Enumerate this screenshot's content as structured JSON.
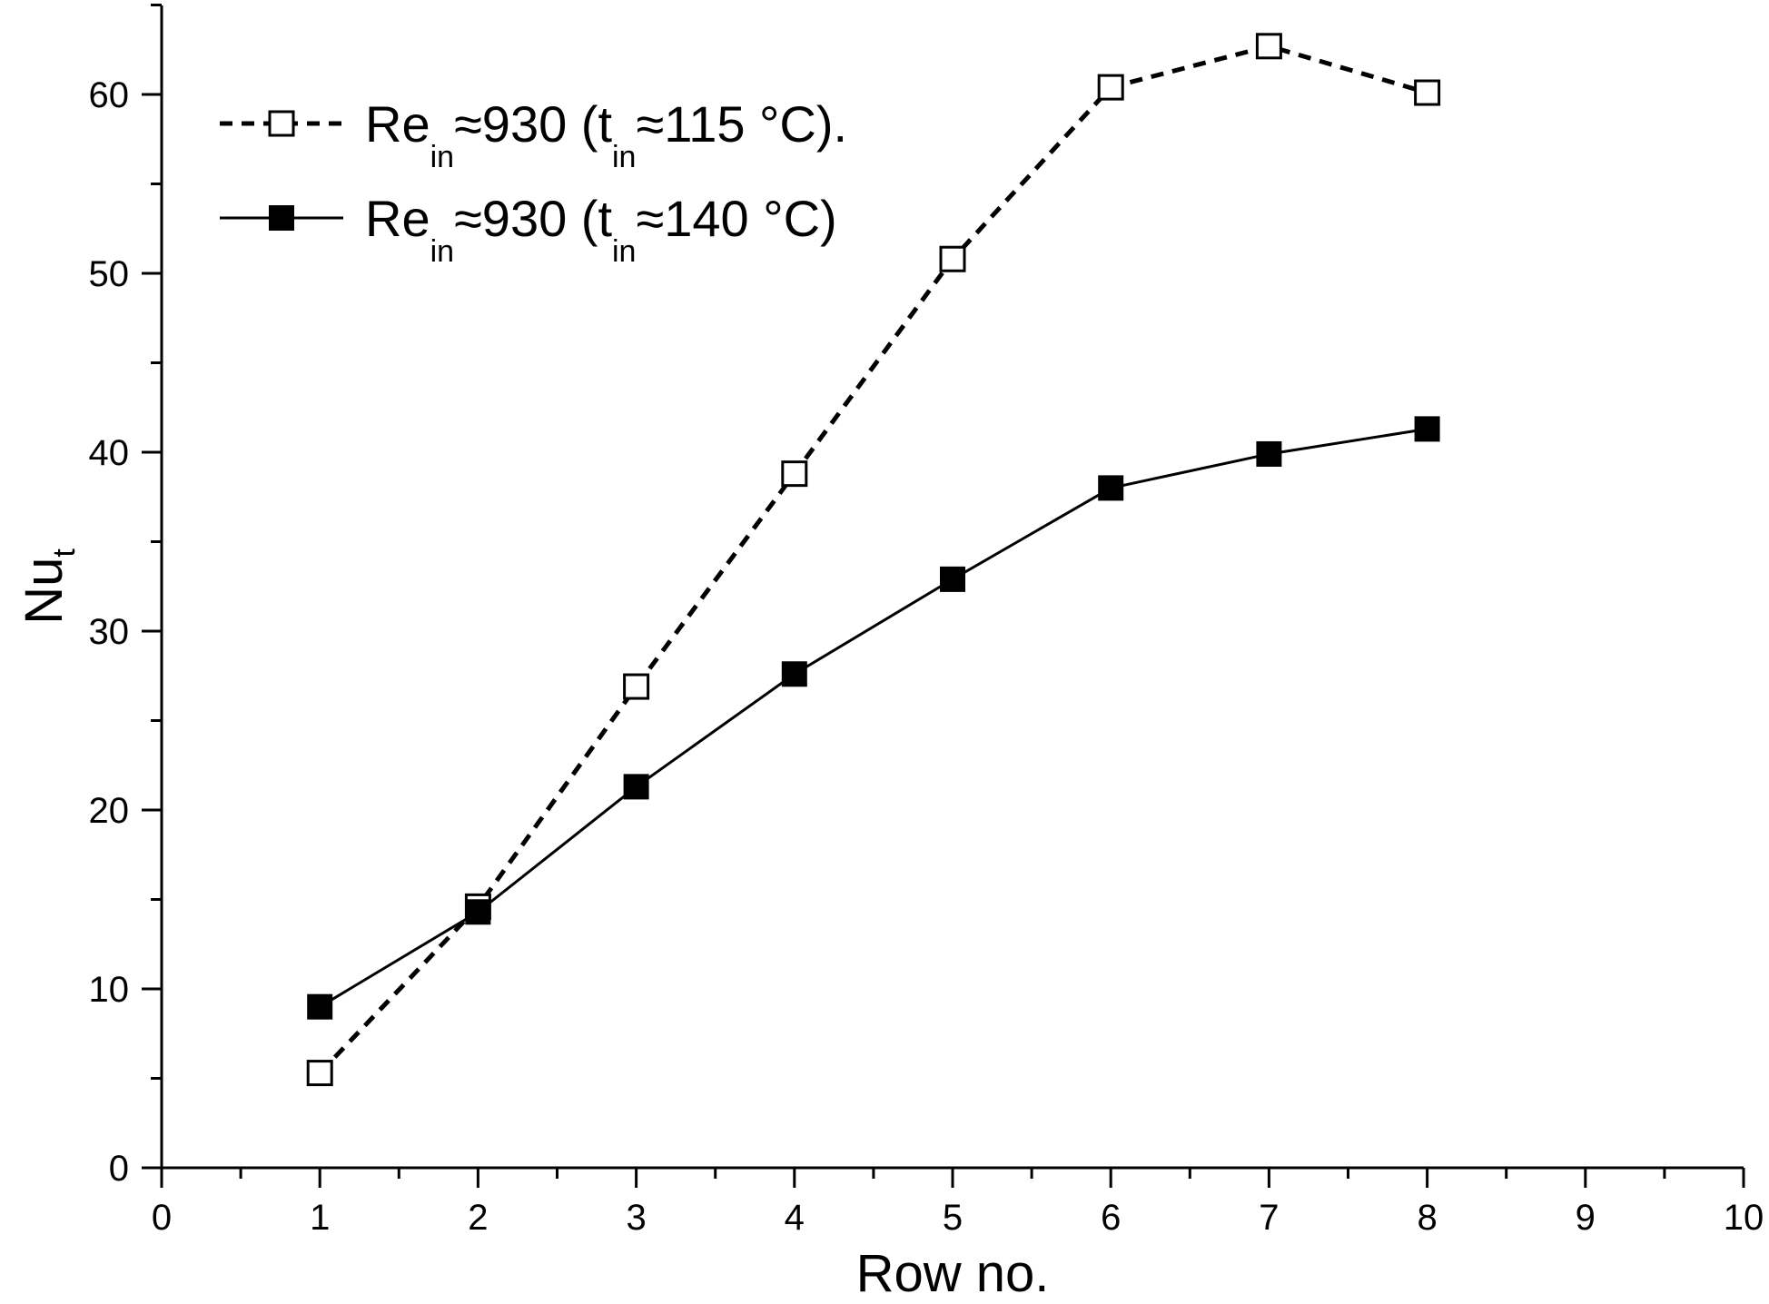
{
  "chart_data": {
    "type": "line",
    "title": "",
    "xlabel": "Row no.",
    "ylabel": {
      "main": "Nu",
      "sub": "t"
    },
    "xlim": [
      0,
      10
    ],
    "ylim": [
      0,
      65
    ],
    "x_major_ticks": [
      0,
      1,
      2,
      3,
      4,
      5,
      6,
      7,
      8,
      9,
      10
    ],
    "x_tick_labels": [
      "0",
      "1",
      "2",
      "3",
      "4",
      "5",
      "6",
      "7",
      "8",
      "9",
      "10"
    ],
    "y_major_ticks": [
      0,
      10,
      20,
      30,
      40,
      50,
      60
    ],
    "y_tick_labels": [
      "0",
      "10",
      "20",
      "30",
      "40",
      "50",
      "60"
    ],
    "grid": false,
    "legend_position": "top-left",
    "x": [
      1,
      2,
      3,
      4,
      5,
      6,
      7,
      8
    ],
    "series": [
      {
        "label_parts": {
          "base": "Re",
          "sub1": "in",
          "mid": "≈930 (t",
          "sub2": "in",
          "tail": "≈115 °C)."
        },
        "values": [
          5.3,
          14.6,
          26.9,
          38.8,
          50.8,
          60.4,
          62.7,
          60.1
        ],
        "marker": "open-square",
        "line_style": "dashed",
        "color": "#000000"
      },
      {
        "label_parts": {
          "base": "Re",
          "sub1": "in",
          "mid": "≈930 (t",
          "sub2": "in",
          "tail": "≈140 °C)"
        },
        "values": [
          9.0,
          14.3,
          21.3,
          27.6,
          32.9,
          38.0,
          39.9,
          41.3
        ],
        "marker": "filled-square",
        "line_style": "solid",
        "color": "#000000"
      }
    ]
  }
}
